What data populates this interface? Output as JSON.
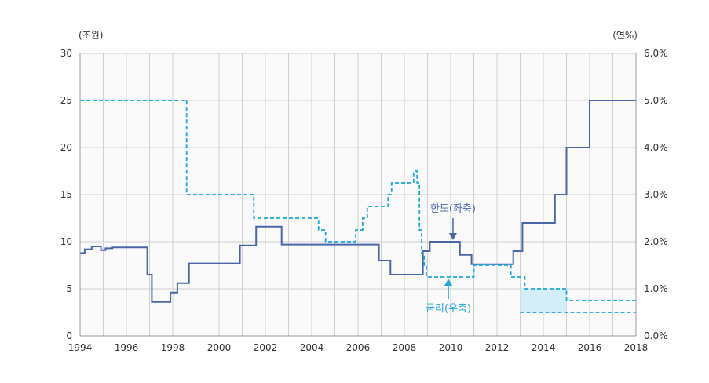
{
  "chart_data": {
    "type": "line",
    "left_unit": "(조원)",
    "right_unit": "(연%)",
    "x_ticks": [
      "1994",
      "1996",
      "1998",
      "2000",
      "2002",
      "2004",
      "2006",
      "2008",
      "2010",
      "2012",
      "2014",
      "2016",
      "2018"
    ],
    "y_left_ticks": [
      "0",
      "5",
      "10",
      "15",
      "20",
      "25",
      "30"
    ],
    "y_right_ticks": [
      "0.0%",
      "1.0%",
      "2.0%",
      "3.0%",
      "4.0%",
      "5.0%",
      "6.0%"
    ],
    "xlim": [
      1994,
      2018
    ],
    "ylim_left": [
      0,
      30
    ],
    "ylim_right": [
      0,
      6
    ],
    "grid": true,
    "colors": {
      "limit": "#4a66a8",
      "rate": "#1ea6d9",
      "band": "#d3eef8",
      "grid": "#d0d0d0",
      "plot_bg": "#fafafa"
    },
    "series": [
      {
        "name": "한도(좌축)",
        "axis": "left",
        "style": "solid-step",
        "x": [
          1994.0,
          1994.2,
          1994.5,
          1994.9,
          1995.1,
          1995.4,
          1996.9,
          1997.1,
          1997.9,
          1998.2,
          1998.7,
          2000.9,
          2001.6,
          2002.7,
          2006.9,
          2007.4,
          2008.8,
          2009.1,
          2010.4,
          2010.9,
          2012.7,
          2013.1,
          2014.5,
          2015.0,
          2016.0,
          2018.0
        ],
        "y": [
          8.8,
          9.2,
          9.5,
          9.1,
          9.3,
          9.4,
          6.5,
          3.6,
          4.6,
          5.6,
          7.7,
          9.6,
          11.6,
          9.7,
          8.0,
          6.5,
          9.0,
          10.0,
          8.6,
          7.6,
          9.0,
          12.0,
          15.0,
          20.0,
          25.0,
          25.0
        ]
      },
      {
        "name": "금리(우축)",
        "axis": "right",
        "style": "dashed-step",
        "x": [
          1994.0,
          1998.6,
          2001.5,
          2004.3,
          2004.6,
          2005.9,
          2006.2,
          2006.4,
          2007.3,
          2007.45,
          2008.4,
          2008.55,
          2008.65,
          2008.75,
          2008.85,
          2008.95,
          2011.0,
          2012.6,
          2013.2,
          2015.0,
          2018.0
        ],
        "y": [
          5.0,
          3.0,
          2.5,
          2.25,
          2.0,
          2.25,
          2.5,
          2.75,
          3.0,
          3.25,
          3.5,
          3.25,
          2.25,
          1.75,
          1.5,
          1.25,
          1.5,
          1.25,
          1.0,
          0.75,
          0.75
        ]
      },
      {
        "name": "",
        "axis": "right",
        "style": "dashed",
        "x": [
          2013.0,
          2018.0
        ],
        "y": [
          0.5,
          0.5
        ]
      }
    ],
    "band": {
      "x": [
        2013.0,
        2015.0
      ],
      "lower": 0.5,
      "upper": 1.0,
      "axis": "right"
    },
    "annotations": [
      {
        "text": "한도(좌축)",
        "series": "limit",
        "x": 2010.1,
        "y_left": 10.0
      },
      {
        "text": "금리(우축)",
        "series": "rate",
        "x": 2009.9,
        "y_right": 1.25
      }
    ]
  }
}
